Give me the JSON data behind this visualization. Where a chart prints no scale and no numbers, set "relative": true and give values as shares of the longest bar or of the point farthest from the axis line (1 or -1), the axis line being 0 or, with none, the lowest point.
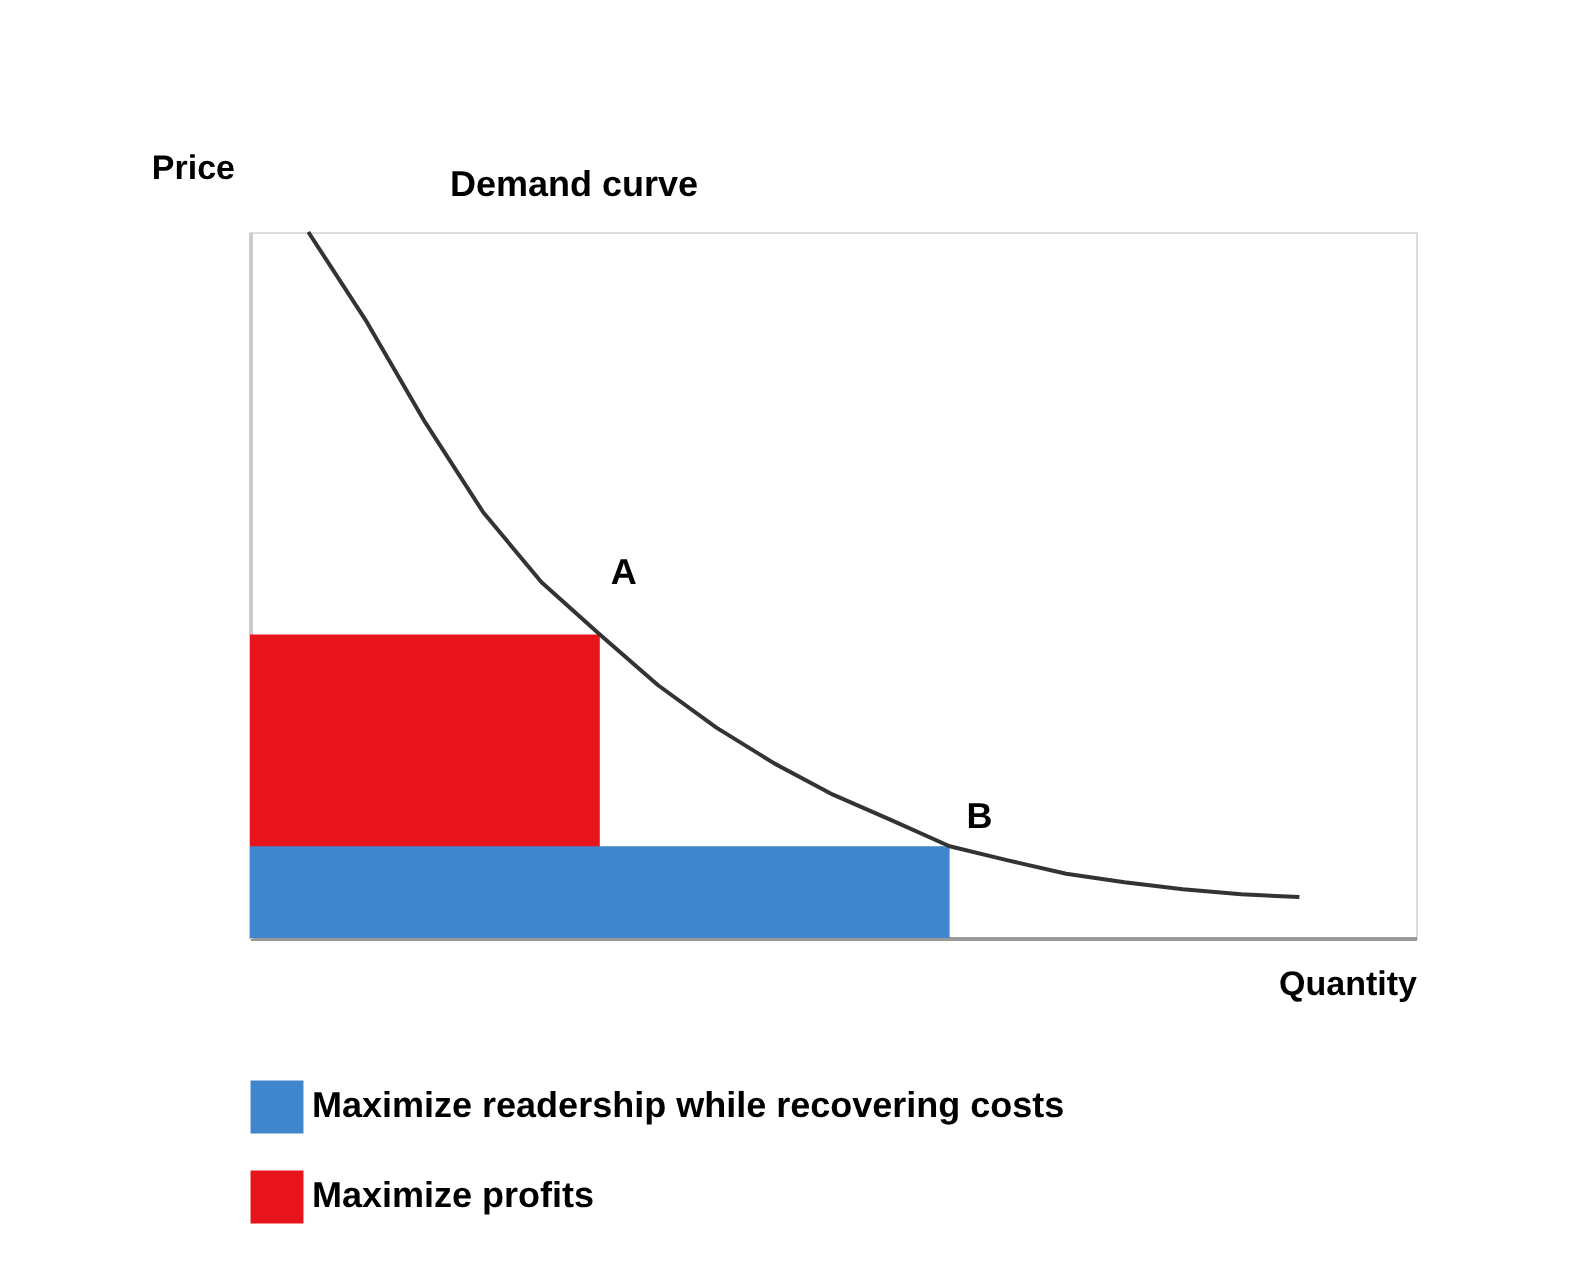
{
  "chart_data": {
    "type": "line",
    "relative": true,
    "xlabel": "Quantity",
    "ylabel": "Price",
    "legend": "bottom",
    "grid": false,
    "marker": "none",
    "line_style": "solid",
    "categories": [
      null,
      null,
      null,
      null,
      null,
      null,
      null,
      null,
      null,
      null,
      null,
      null,
      null,
      null,
      null,
      null,
      null,
      null,
      null,
      null
    ],
    "series": [
      {
        "color": "#333333",
        "values": [
          null,
          1.0,
          0.873,
          0.731,
          0.603,
          0.504,
          0.43,
          0.358,
          0.298,
          0.247,
          0.203,
          0.167,
          0.13,
          0.11,
          0.091,
          0.079,
          0.069,
          0.062,
          0.058,
          null
        ]
      },
      {
        "type": "area",
        "name": "Maximize readership while recovering costs",
        "color": "#3f86cc",
        "values": [
          0.13,
          0.13,
          0.13,
          0.13,
          0.13,
          0.13,
          0.13,
          0.13,
          0.13,
          0.13,
          0.13,
          0.13,
          0.13,
          null,
          null,
          null,
          null,
          null,
          null,
          null
        ]
      },
      {
        "type": "area",
        "name": "Maximize profits",
        "color": "#e8141c",
        "values": [
          0.43,
          0.43,
          0.43,
          0.43,
          0.43,
          0.43,
          0.43,
          null,
          null,
          null,
          null,
          null,
          null,
          null,
          null,
          null,
          null,
          null,
          null,
          null
        ]
      }
    ],
    "annotations": [
      "Demand curve",
      "A",
      "B"
    ]
  }
}
